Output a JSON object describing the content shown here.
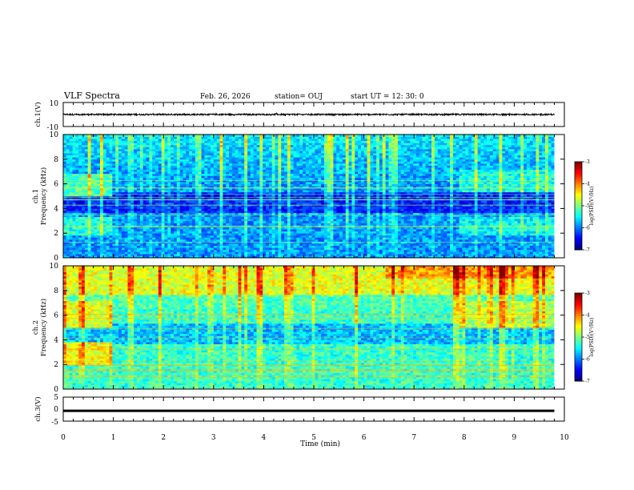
{
  "header": {
    "title": "VLF Spectra",
    "date": "Feb. 26, 2026",
    "station": "station= OUJ",
    "start": "start  UT  =   12: 30: 0"
  },
  "chart_data": [
    {
      "type": "line",
      "name": "ch.1 waveform",
      "ylabel": "ch.1(V)",
      "ylim": [
        -10,
        10
      ],
      "yticks": [
        "10",
        "-10"
      ],
      "level": 0,
      "noise_amplitude": 0.6
    },
    {
      "type": "heatmap",
      "name": "ch.1 spectrogram",
      "ylabel": "ch.1\nFrequency (kHz)",
      "ylim": [
        0,
        10
      ],
      "yticks": [
        "0",
        "2",
        "4",
        "6",
        "8",
        "10"
      ],
      "colorbar": {
        "label": "log(PSD)(V²/Hz)",
        "range": [
          -7,
          -3
        ],
        "ticks": [
          "-3",
          "-4",
          "-5",
          "-6",
          "-7"
        ]
      },
      "base_level": -5.9,
      "regions": [
        {
          "t": [
            0,
            0.95
          ],
          "f": [
            5.0,
            6.8
          ],
          "level": -5.2
        },
        {
          "t": [
            0,
            0.95
          ],
          "f": [
            1.8,
            3.3
          ],
          "level": -5.4
        },
        {
          "t": [
            7.85,
            9.8
          ],
          "f": [
            5.2,
            7.0
          ],
          "level": -5.4
        },
        {
          "t": [
            7.85,
            9.8
          ],
          "f": [
            1.8,
            3.3
          ],
          "level": -5.5
        }
      ]
    },
    {
      "type": "heatmap",
      "name": "ch.2 spectrogram",
      "ylabel": "ch.2\nFrequency (kHz)",
      "ylim": [
        0,
        10
      ],
      "yticks": [
        "0",
        "2",
        "4",
        "6",
        "8",
        "10"
      ],
      "colorbar": {
        "label": "log(PSD)(V²/Hz)",
        "range": [
          -7,
          -3
        ],
        "ticks": [
          "-3",
          "-4",
          "-5",
          "-6",
          "-7"
        ]
      },
      "base_level": -5.3,
      "regions": [
        {
          "t": [
            0,
            9.8
          ],
          "f": [
            7.6,
            10
          ],
          "level": -4.6
        },
        {
          "t": [
            0,
            0.95
          ],
          "f": [
            4.9,
            7.0
          ],
          "level": -4.6
        },
        {
          "t": [
            0,
            0.95
          ],
          "f": [
            1.9,
            3.7
          ],
          "level": -4.5
        },
        {
          "t": [
            7.85,
            9.8
          ],
          "f": [
            4.9,
            7.0
          ],
          "level": -4.8
        },
        {
          "t": [
            6.4,
            9.8
          ],
          "f": [
            9.0,
            10
          ],
          "level": -4.1
        }
      ]
    },
    {
      "type": "line",
      "name": "ch.3 waveform",
      "ylabel": "ch.3(V)",
      "ylim": [
        -5,
        5
      ],
      "yticks": [
        "5",
        "0",
        "-5"
      ],
      "level": -0.6,
      "noise_amplitude": 0.2
    }
  ],
  "x_axis": {
    "label": "Time  (min)",
    "range": [
      0,
      10
    ],
    "ticks": [
      "0",
      "1",
      "2",
      "3",
      "4",
      "5",
      "6",
      "7",
      "8",
      "9",
      "10"
    ],
    "data_end": 9.8
  }
}
